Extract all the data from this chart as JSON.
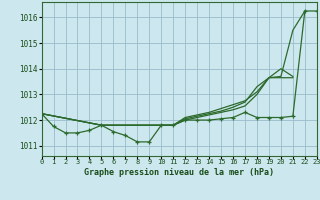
{
  "title": "Graphe pression niveau de la mer (hPa)",
  "background_color": "#cce8ee",
  "grid_color": "#99bbcc",
  "line_color": "#2d6a2d",
  "xlim": [
    0,
    23
  ],
  "ylim": [
    1010.6,
    1016.6
  ],
  "yticks": [
    1011,
    1012,
    1013,
    1014,
    1015,
    1016
  ],
  "xtick_labels": [
    "0",
    "1",
    "2",
    "3",
    "4",
    "5",
    "6",
    "7",
    "8",
    "9",
    "10",
    "11",
    "12",
    "13",
    "14",
    "15",
    "16",
    "17",
    "18",
    "19",
    "20",
    "21",
    "22",
    "23"
  ],
  "obs_x": [
    0,
    1,
    2,
    3,
    4,
    5,
    6,
    7,
    8,
    9,
    10,
    11,
    12,
    13,
    14,
    15,
    16,
    17,
    18,
    19,
    20,
    21,
    22,
    23
  ],
  "obs_y": [
    1012.25,
    1011.75,
    1011.5,
    1011.5,
    1011.6,
    1011.8,
    1011.55,
    1011.4,
    1011.15,
    1011.15,
    1011.8,
    1011.8,
    1012.0,
    1012.0,
    1012.0,
    1012.05,
    1012.1,
    1012.3,
    1012.1,
    1012.1,
    1012.1,
    1012.15,
    1016.25,
    1016.25
  ],
  "line1_x": [
    0,
    5,
    10,
    11,
    12,
    13,
    14,
    15,
    16,
    17,
    18,
    19,
    20,
    21,
    22
  ],
  "line1_y": [
    1012.25,
    1011.8,
    1011.8,
    1011.8,
    1012.0,
    1012.1,
    1012.2,
    1012.3,
    1012.4,
    1012.55,
    1013.0,
    1013.65,
    1013.7,
    1015.5,
    1016.25
  ],
  "line2_x": [
    0,
    5,
    10,
    11,
    12,
    13,
    14,
    15,
    16,
    17,
    18,
    19,
    20,
    21
  ],
  "line2_y": [
    1012.25,
    1011.8,
    1011.8,
    1011.8,
    1012.05,
    1012.15,
    1012.25,
    1012.35,
    1012.5,
    1012.7,
    1013.3,
    1013.65,
    1014.0,
    1013.7
  ],
  "line3_x": [
    0,
    5,
    10,
    11,
    12,
    13,
    14,
    15,
    16,
    17,
    18,
    19,
    20,
    21
  ],
  "line3_y": [
    1012.25,
    1011.8,
    1011.8,
    1011.8,
    1012.1,
    1012.2,
    1012.3,
    1012.45,
    1012.6,
    1012.75,
    1013.1,
    1013.65,
    1013.65,
    1013.65
  ]
}
